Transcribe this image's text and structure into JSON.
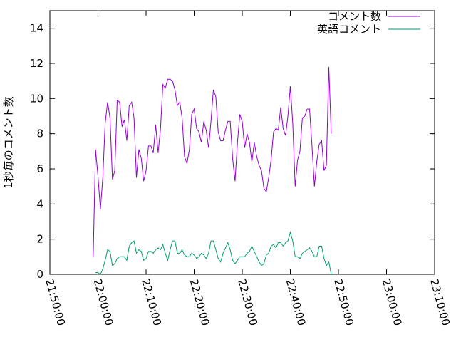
{
  "chart_data": {
    "type": "line",
    "ylabel": "1秒毎のコメント数",
    "xlabel": "",
    "title": "",
    "xlim": [
      "21:50:00",
      "23:10:00"
    ],
    "ylim": [
      0,
      15
    ],
    "x_ticks": [
      "21:50:00",
      "22:00:00",
      "22:10:00",
      "22:20:00",
      "22:30:00",
      "22:40:00",
      "22:50:00",
      "23:00:00",
      "23:10:00"
    ],
    "y_ticks": [
      "0",
      "2",
      "4",
      "6",
      "8",
      "10",
      "12",
      "14"
    ],
    "grid": false,
    "legend_position": "top-right",
    "series": [
      {
        "name": "コメント数",
        "color": "#9400d3",
        "points": [
          [
            "21:59:00",
            1.0
          ],
          [
            "21:59:30",
            7.1
          ],
          [
            "22:00:00",
            5.6
          ],
          [
            "22:00:30",
            3.7
          ],
          [
            "22:01:00",
            5.5
          ],
          [
            "22:01:30",
            8.6
          ],
          [
            "22:02:00",
            9.8
          ],
          [
            "22:02:30",
            8.9
          ],
          [
            "22:03:00",
            5.4
          ],
          [
            "22:03:30",
            5.9
          ],
          [
            "22:04:00",
            9.9
          ],
          [
            "22:04:30",
            9.8
          ],
          [
            "22:05:00",
            8.4
          ],
          [
            "22:05:30",
            8.8
          ],
          [
            "22:06:00",
            7.6
          ],
          [
            "22:06:30",
            9.6
          ],
          [
            "22:07:00",
            9.8
          ],
          [
            "22:07:30",
            8.9
          ],
          [
            "22:08:00",
            5.5
          ],
          [
            "22:08:30",
            7.1
          ],
          [
            "22:09:00",
            6.6
          ],
          [
            "22:09:30",
            5.3
          ],
          [
            "22:10:00",
            5.9
          ],
          [
            "22:10:30",
            7.3
          ],
          [
            "22:11:00",
            7.3
          ],
          [
            "22:11:30",
            6.9
          ],
          [
            "22:12:00",
            8.5
          ],
          [
            "22:12:30",
            6.9
          ],
          [
            "22:13:00",
            8.3
          ],
          [
            "22:13:30",
            10.8
          ],
          [
            "22:14:00",
            10.6
          ],
          [
            "22:14:30",
            11.1
          ],
          [
            "22:15:00",
            11.1
          ],
          [
            "22:15:30",
            11.0
          ],
          [
            "22:16:00",
            10.5
          ],
          [
            "22:16:30",
            9.6
          ],
          [
            "22:17:00",
            9.8
          ],
          [
            "22:17:30",
            8.9
          ],
          [
            "22:18:00",
            6.7
          ],
          [
            "22:18:30",
            6.3
          ],
          [
            "22:19:00",
            7.1
          ],
          [
            "22:19:30",
            9.1
          ],
          [
            "22:20:00",
            9.4
          ],
          [
            "22:20:30",
            8.3
          ],
          [
            "22:21:00",
            8.1
          ],
          [
            "22:21:30",
            7.5
          ],
          [
            "22:22:00",
            8.7
          ],
          [
            "22:22:30",
            8.2
          ],
          [
            "22:23:00",
            7.2
          ],
          [
            "22:23:30",
            8.7
          ],
          [
            "22:24:00",
            10.5
          ],
          [
            "22:24:30",
            10.1
          ],
          [
            "22:25:00",
            8.1
          ],
          [
            "22:25:30",
            7.6
          ],
          [
            "22:26:00",
            7.6
          ],
          [
            "22:26:30",
            8.2
          ],
          [
            "22:27:00",
            8.7
          ],
          [
            "22:27:30",
            8.7
          ],
          [
            "22:28:00",
            6.6
          ],
          [
            "22:28:30",
            5.3
          ],
          [
            "22:29:00",
            7.5
          ],
          [
            "22:29:30",
            9.1
          ],
          [
            "22:30:00",
            8.7
          ],
          [
            "22:30:30",
            7.2
          ],
          [
            "22:31:00",
            8.0
          ],
          [
            "22:31:30",
            7.5
          ],
          [
            "22:32:00",
            6.4
          ],
          [
            "22:32:30",
            7.5
          ],
          [
            "22:33:00",
            6.7
          ],
          [
            "22:33:30",
            6.2
          ],
          [
            "22:34:00",
            5.9
          ],
          [
            "22:34:30",
            4.9
          ],
          [
            "22:35:00",
            4.7
          ],
          [
            "22:35:30",
            5.5
          ],
          [
            "22:36:00",
            6.5
          ],
          [
            "22:36:30",
            8.1
          ],
          [
            "22:37:00",
            8.3
          ],
          [
            "22:37:30",
            8.2
          ],
          [
            "22:38:00",
            9.5
          ],
          [
            "22:38:30",
            8.3
          ],
          [
            "22:39:00",
            7.9
          ],
          [
            "22:39:30",
            9.0
          ],
          [
            "22:40:00",
            10.7
          ],
          [
            "22:40:30",
            8.6
          ],
          [
            "22:41:00",
            5.0
          ],
          [
            "22:41:30",
            6.5
          ],
          [
            "22:42:00",
            7.0
          ],
          [
            "22:42:30",
            8.9
          ],
          [
            "22:43:00",
            9.0
          ],
          [
            "22:43:30",
            9.4
          ],
          [
            "22:44:00",
            9.4
          ],
          [
            "22:44:30",
            7.3
          ],
          [
            "22:45:00",
            5.0
          ],
          [
            "22:45:30",
            6.4
          ],
          [
            "22:46:00",
            7.4
          ],
          [
            "22:46:30",
            7.6
          ],
          [
            "22:47:00",
            5.9
          ],
          [
            "22:47:30",
            6.2
          ],
          [
            "22:48:00",
            11.8
          ],
          [
            "22:48:30",
            8.0
          ]
        ]
      },
      {
        "name": "英語コメント",
        "color": "#009e73",
        "points": [
          [
            "21:59:30",
            0.1
          ],
          [
            "22:00:00",
            0.1
          ],
          [
            "22:00:30",
            0.0
          ],
          [
            "22:01:00",
            0.3
          ],
          [
            "22:01:30",
            0.8
          ],
          [
            "22:02:00",
            1.4
          ],
          [
            "22:02:30",
            1.3
          ],
          [
            "22:03:00",
            0.5
          ],
          [
            "22:03:30",
            0.6
          ],
          [
            "22:04:00",
            0.9
          ],
          [
            "22:04:30",
            1.0
          ],
          [
            "22:05:00",
            1.0
          ],
          [
            "22:05:30",
            1.0
          ],
          [
            "22:06:00",
            0.8
          ],
          [
            "22:06:30",
            1.6
          ],
          [
            "22:07:00",
            1.8
          ],
          [
            "22:07:30",
            1.9
          ],
          [
            "22:08:00",
            1.2
          ],
          [
            "22:08:30",
            1.4
          ],
          [
            "22:09:00",
            1.3
          ],
          [
            "22:09:30",
            0.8
          ],
          [
            "22:10:00",
            0.9
          ],
          [
            "22:10:30",
            1.3
          ],
          [
            "22:11:00",
            1.3
          ],
          [
            "22:11:30",
            1.2
          ],
          [
            "22:12:00",
            1.4
          ],
          [
            "22:12:30",
            1.5
          ],
          [
            "22:13:00",
            1.4
          ],
          [
            "22:13:30",
            1.7
          ],
          [
            "22:14:00",
            1.2
          ],
          [
            "22:14:30",
            0.8
          ],
          [
            "22:15:00",
            1.4
          ],
          [
            "22:15:30",
            1.9
          ],
          [
            "22:16:00",
            1.9
          ],
          [
            "22:16:30",
            1.2
          ],
          [
            "22:17:00",
            1.2
          ],
          [
            "22:17:30",
            1.4
          ],
          [
            "22:18:00",
            1.1
          ],
          [
            "22:18:30",
            1.0
          ],
          [
            "22:19:00",
            1.0
          ],
          [
            "22:19:30",
            1.2
          ],
          [
            "22:20:00",
            1.1
          ],
          [
            "22:20:30",
            0.9
          ],
          [
            "22:21:00",
            1.0
          ],
          [
            "22:21:30",
            1.2
          ],
          [
            "22:22:00",
            1.1
          ],
          [
            "22:22:30",
            0.9
          ],
          [
            "22:23:00",
            1.2
          ],
          [
            "22:23:30",
            1.9
          ],
          [
            "22:24:00",
            1.9
          ],
          [
            "22:24:30",
            1.4
          ],
          [
            "22:25:00",
            0.9
          ],
          [
            "22:25:30",
            0.7
          ],
          [
            "22:26:00",
            1.2
          ],
          [
            "22:26:30",
            1.5
          ],
          [
            "22:27:00",
            1.8
          ],
          [
            "22:27:30",
            1.4
          ],
          [
            "22:28:00",
            0.8
          ],
          [
            "22:28:30",
            0.6
          ],
          [
            "22:29:00",
            0.8
          ],
          [
            "22:29:30",
            1.0
          ],
          [
            "22:30:00",
            1.0
          ],
          [
            "22:30:30",
            1.0
          ],
          [
            "22:31:00",
            1.2
          ],
          [
            "22:31:30",
            1.3
          ],
          [
            "22:32:00",
            1.6
          ],
          [
            "22:32:30",
            1.3
          ],
          [
            "22:33:00",
            1.0
          ],
          [
            "22:33:30",
            0.7
          ],
          [
            "22:34:00",
            0.5
          ],
          [
            "22:34:30",
            0.6
          ],
          [
            "22:35:00",
            1.1
          ],
          [
            "22:35:30",
            1.2
          ],
          [
            "22:36:00",
            1.6
          ],
          [
            "22:36:30",
            1.7
          ],
          [
            "22:37:00",
            1.5
          ],
          [
            "22:37:30",
            1.8
          ],
          [
            "22:38:00",
            1.8
          ],
          [
            "22:38:30",
            1.6
          ],
          [
            "22:39:00",
            1.8
          ],
          [
            "22:39:30",
            1.9
          ],
          [
            "22:40:00",
            2.4
          ],
          [
            "22:40:30",
            1.9
          ],
          [
            "22:41:00",
            1.0
          ],
          [
            "22:41:30",
            1.0
          ],
          [
            "22:42:00",
            0.9
          ],
          [
            "22:42:30",
            1.2
          ],
          [
            "22:43:00",
            1.3
          ],
          [
            "22:43:30",
            1.4
          ],
          [
            "22:44:00",
            1.5
          ],
          [
            "22:44:30",
            1.3
          ],
          [
            "22:45:00",
            1.0
          ],
          [
            "22:45:30",
            1.0
          ],
          [
            "22:46:00",
            1.6
          ],
          [
            "22:46:30",
            1.6
          ],
          [
            "22:47:00",
            0.9
          ],
          [
            "22:47:30",
            0.5
          ],
          [
            "22:48:00",
            0.7
          ],
          [
            "22:48:30",
            0.0
          ]
        ]
      }
    ]
  }
}
